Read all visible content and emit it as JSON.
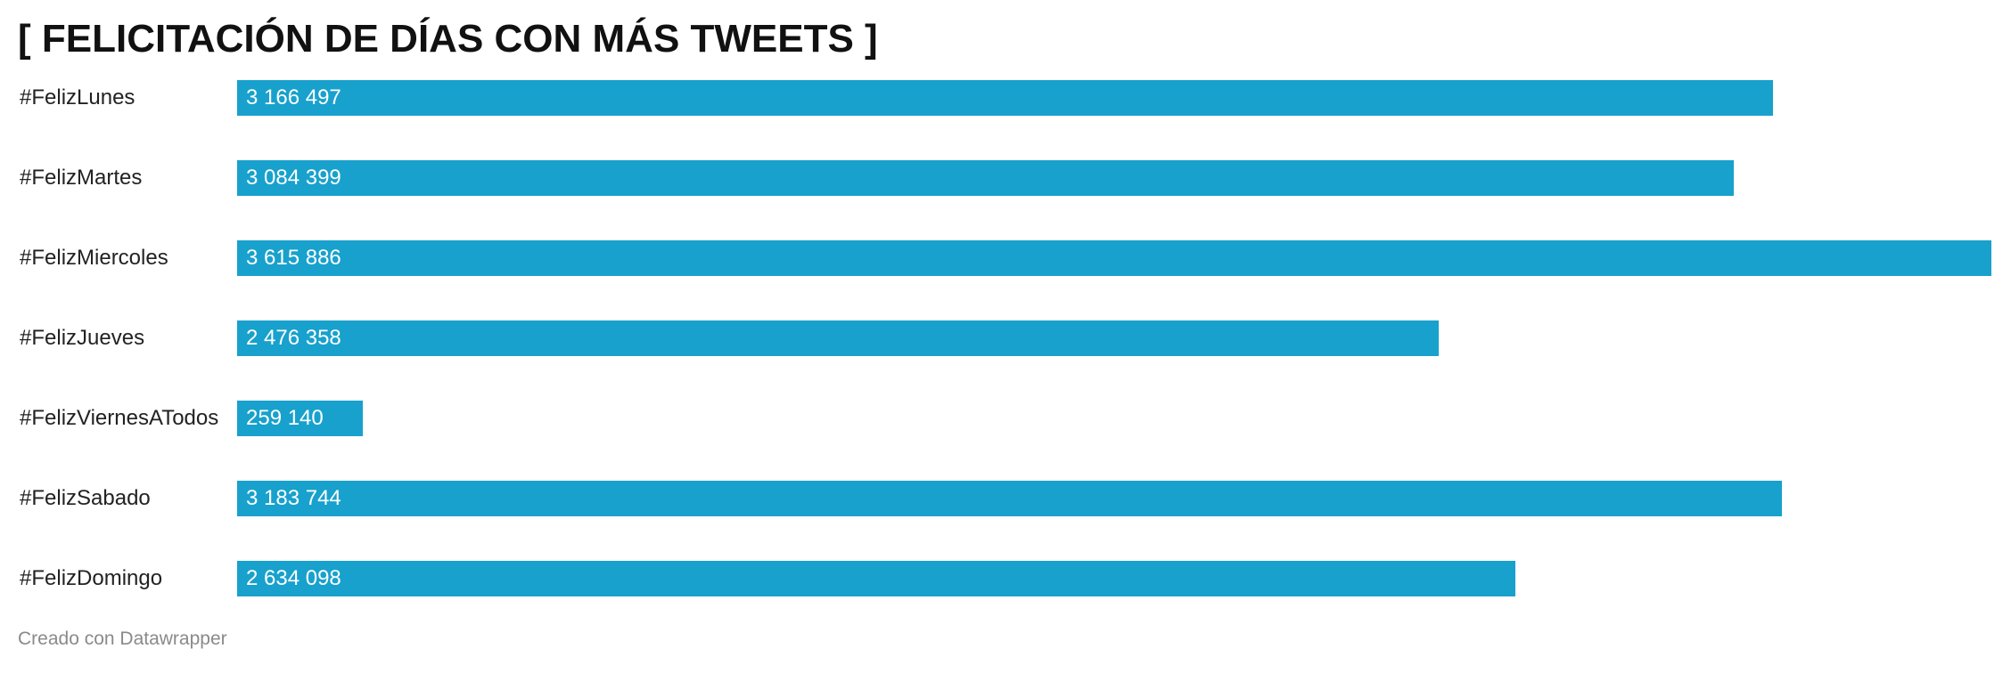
{
  "chart_data": {
    "type": "bar",
    "orientation": "horizontal",
    "title": "[ FELICITACIÓN DE DÍAS CON MÁS TWEETS ]",
    "categories": [
      "#FelizLunes",
      "#FelizMartes",
      "#FelizMiercoles",
      "#FelizJueves",
      "#FelizViernesATodos",
      "#FelizSabado",
      "#FelizDomingo"
    ],
    "values": [
      3166497,
      3084399,
      3615886,
      2476358,
      259140,
      3183744,
      2634098
    ],
    "value_labels": [
      "3 166 497",
      "3 084 399",
      "3 615 886",
      "2 476 358",
      "259 140",
      "3 183 744",
      "2 634 098"
    ],
    "bar_color": "#18a1cd",
    "grid": false,
    "legend": "none"
  },
  "footer": {
    "credit": "Creado con Datawrapper"
  }
}
